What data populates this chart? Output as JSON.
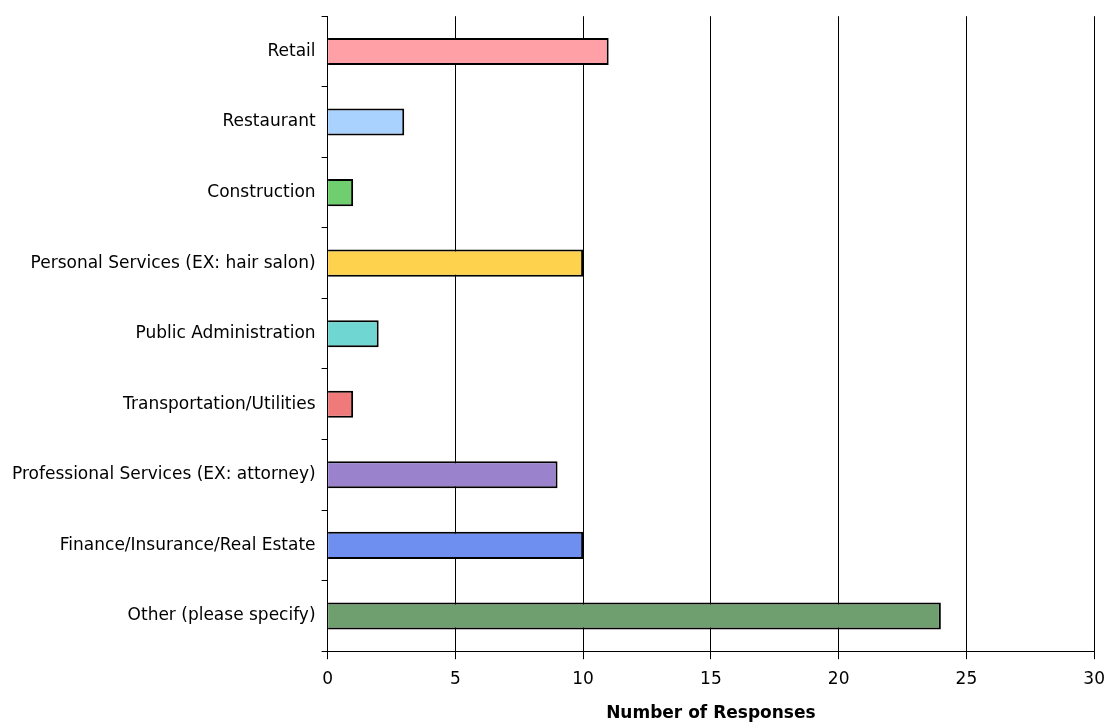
{
  "chart_data": {
    "type": "bar",
    "orientation": "horizontal",
    "xlabel": "Number of Responses",
    "categories": [
      "Retail",
      "Restaurant",
      "Construction",
      "Personal Services (EX: hair salon)",
      "Public Administration",
      "Transportation/Utilities",
      "Professional Services (EX: attorney)",
      "Finance/Insurance/Real Estate",
      "Other (please specify)"
    ],
    "values": [
      11,
      3,
      1,
      10,
      2,
      1,
      9,
      10,
      24
    ],
    "colors": [
      "#ff9fa6",
      "#a9d2ff",
      "#6fcf6f",
      "#ffd24d",
      "#6fd6d2",
      "#f07a7a",
      "#9a82cc",
      "#6f8ff0",
      "#6f9f6f"
    ],
    "xlim": [
      0,
      30
    ],
    "xticks": [
      0,
      5,
      10,
      15,
      20,
      25,
      30
    ],
    "grid": "x",
    "legend": false
  }
}
